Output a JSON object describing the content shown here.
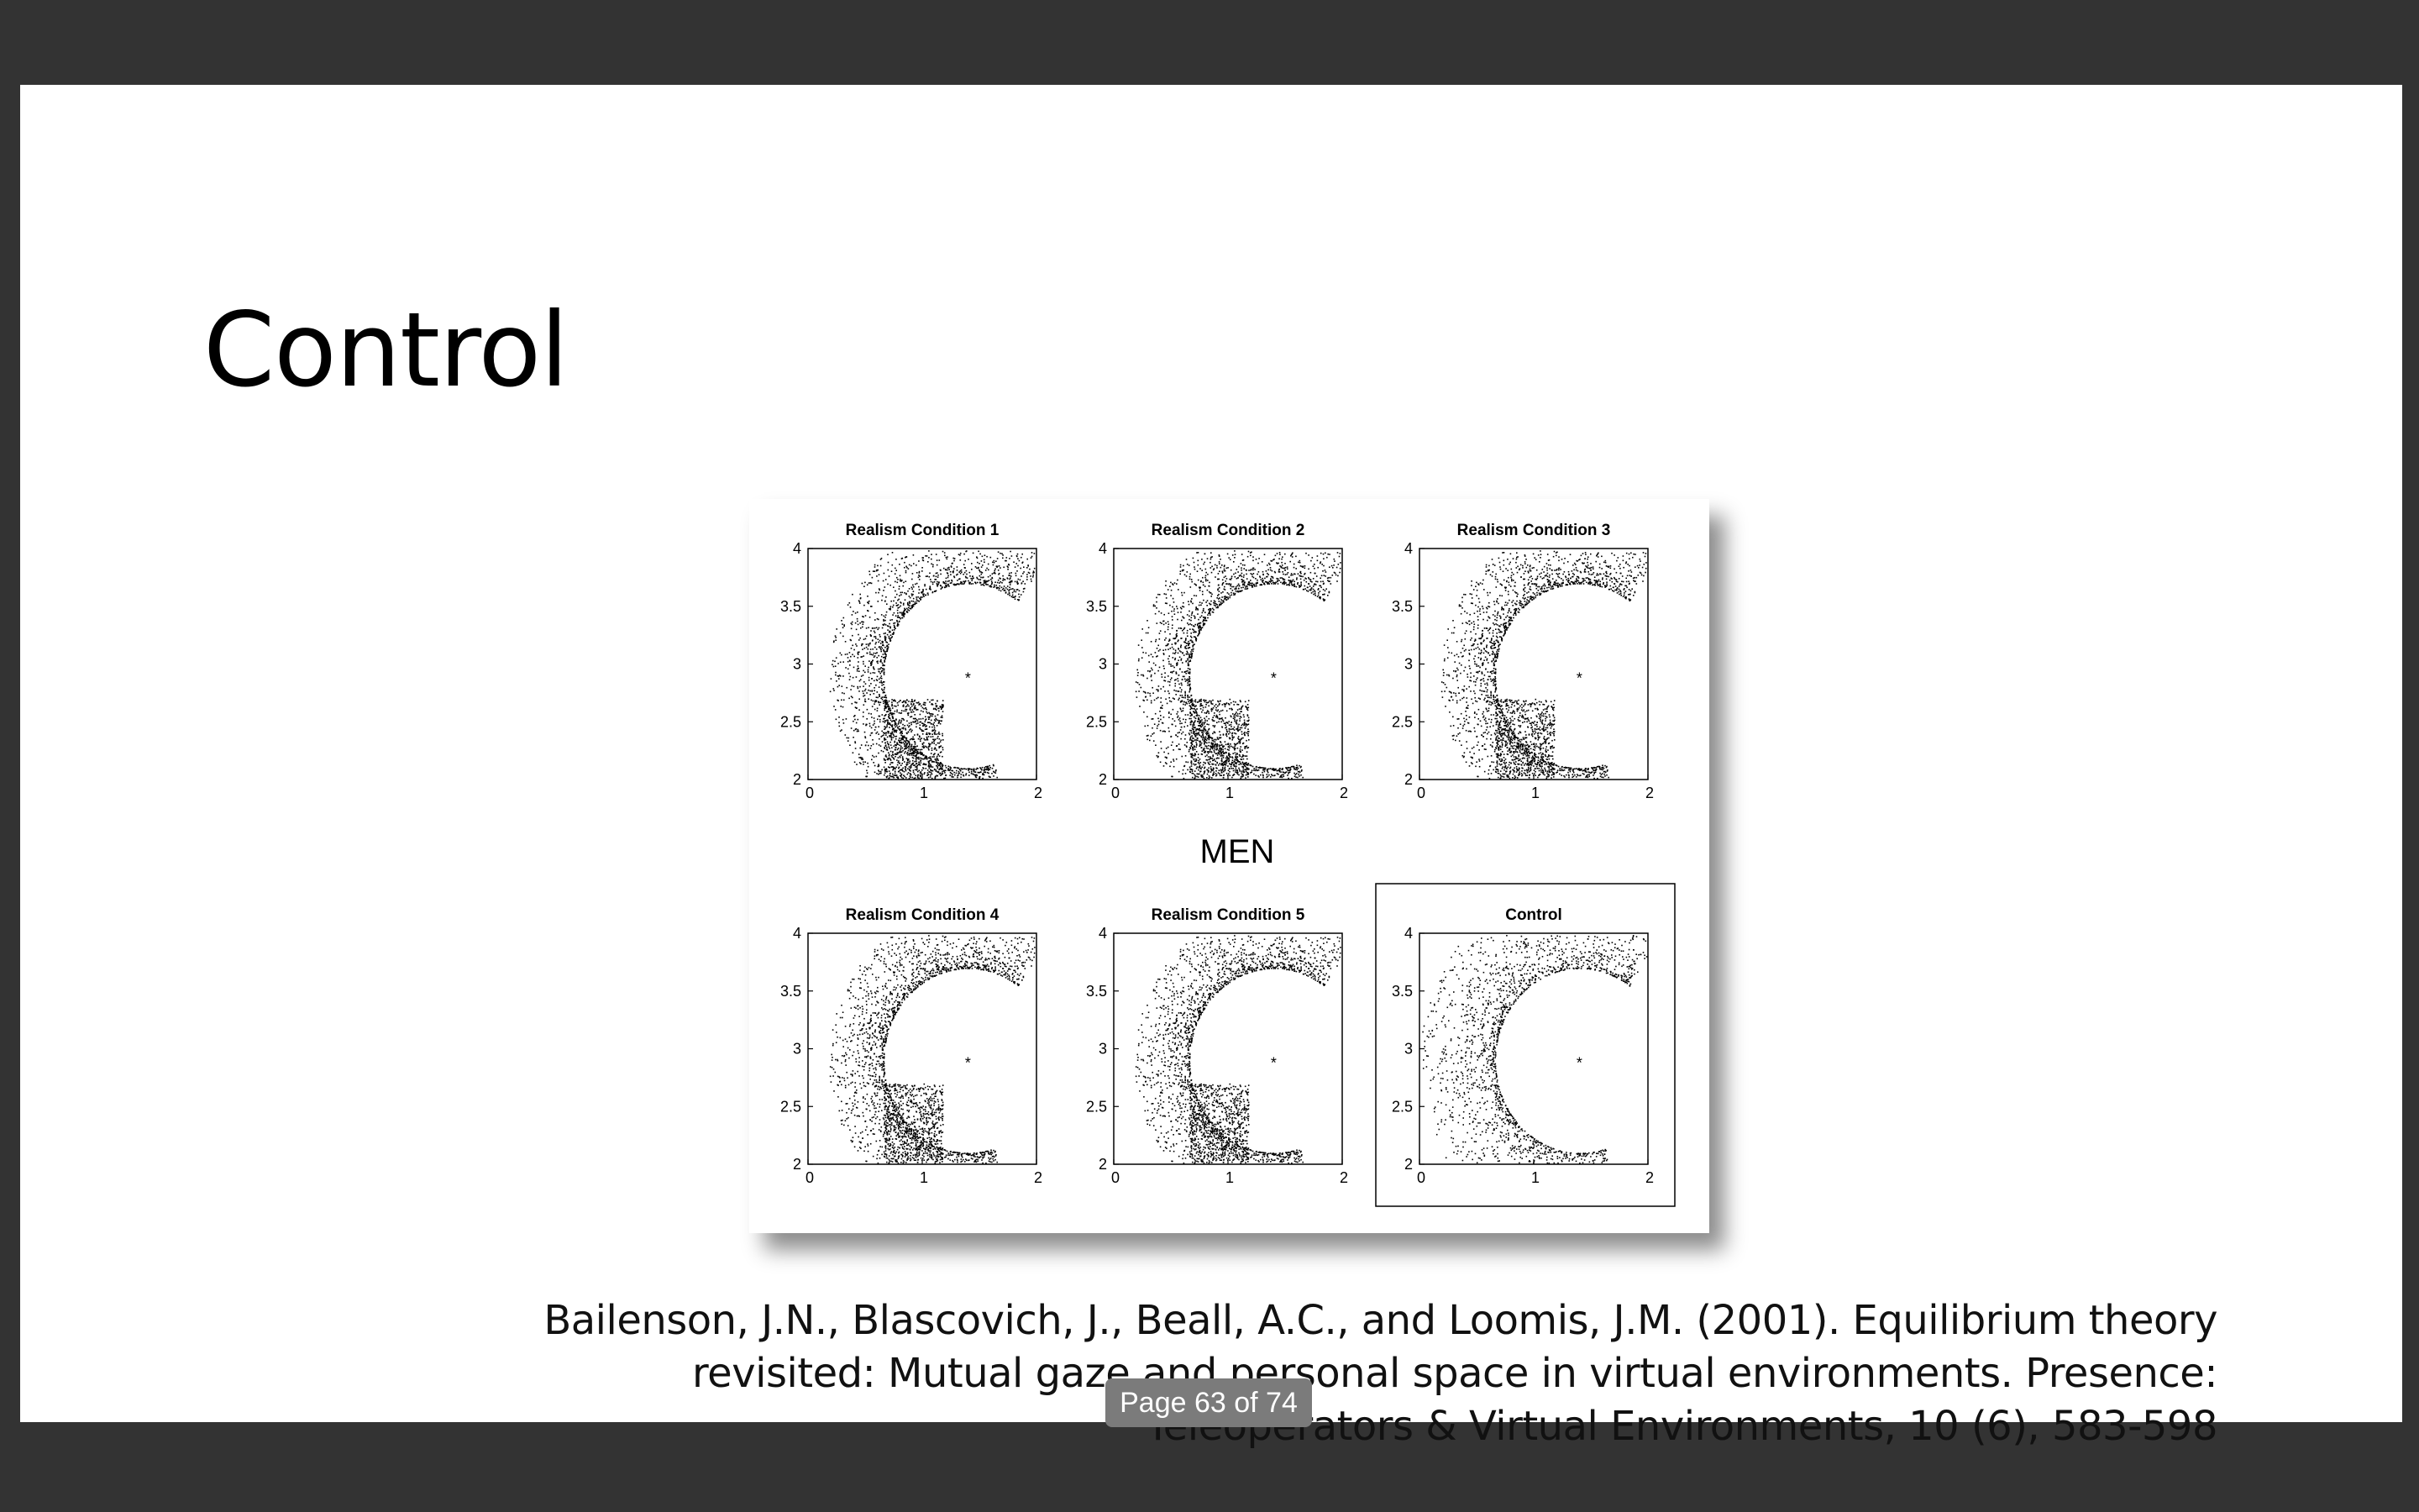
{
  "slide": {
    "title": "Control",
    "figure": {
      "center_label": "MEN",
      "panels": [
        {
          "title": "Realism Condition 1"
        },
        {
          "title": "Realism Condition 2"
        },
        {
          "title": "Realism Condition 3"
        },
        {
          "title": "Realism Condition 4"
        },
        {
          "title": "Realism Condition 5"
        },
        {
          "title": "Control"
        }
      ],
      "x_ticks": [
        "0",
        "1",
        "2"
      ],
      "y_ticks": [
        "2",
        "2.5",
        "3",
        "3.5",
        "4"
      ],
      "xlim": [
        0,
        2
      ],
      "ylim": [
        2,
        4
      ],
      "marker_symbol": "*",
      "marker_position": [
        1.4,
        2.9
      ]
    },
    "citation_lines": [
      "Bailenson, J.N., Blascovich, J., Beall, A.C., and Loomis, J.M. (2001). Equilibrium theory",
      "revisited: Mutual gaze and personal space in virtual environments. Presence:",
      "Teleoperators & Virtual Environments, 10 (6), 583-598"
    ]
  },
  "viewer": {
    "page_indicator": "Page 63 of 74"
  }
}
